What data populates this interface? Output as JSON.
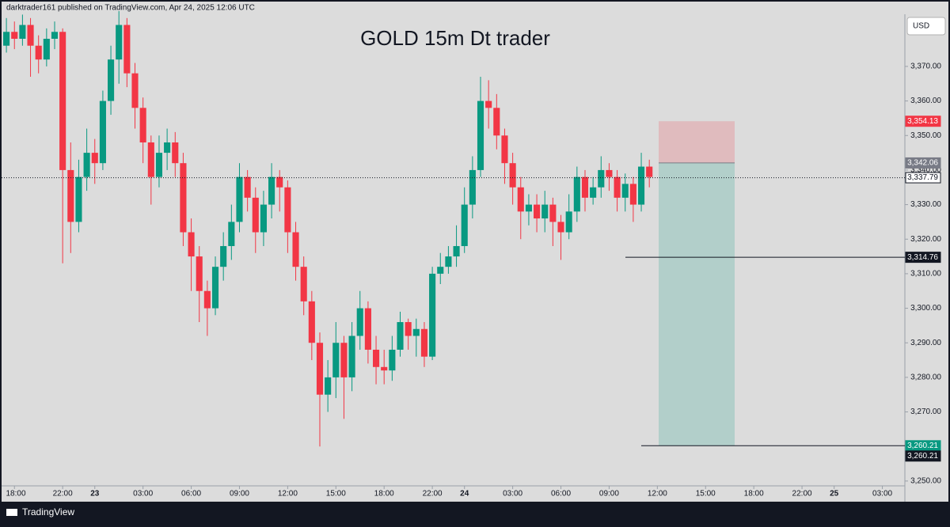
{
  "header": {
    "text": "darktrader161 published on TradingView.com, Apr 24, 2025 12:06 UTC"
  },
  "footer": {
    "brand": "TradingView"
  },
  "chart_data": {
    "type": "candlestick",
    "title": "GOLD 15m  Dt trader",
    "currency": "USD",
    "up_color": "#089981",
    "down_color": "#f23645",
    "x": [
      -5.5,
      -5,
      -4.5,
      -4,
      -3.5,
      -3,
      -2.5,
      -2,
      -1.5,
      -1,
      -0.5,
      0,
      0.5,
      1,
      1.5,
      2,
      2.5,
      3,
      3.5,
      4,
      4.5,
      5,
      5.5,
      6,
      6.5,
      7,
      7.5,
      8,
      8.5,
      9,
      9.5,
      10,
      10.5,
      11,
      11.5,
      12,
      12.5,
      13,
      13.5,
      14,
      14.5,
      15,
      15.5,
      16,
      16.5,
      17,
      17.5,
      18,
      18.5,
      19,
      19.5,
      20,
      20.5,
      21,
      21.5,
      22,
      22.5,
      23,
      23.5,
      24,
      24.5,
      25,
      25.5,
      26,
      26.5,
      27,
      27.5,
      28,
      28.5,
      29,
      29.5,
      30,
      30.5,
      31,
      31.5,
      32,
      32.5,
      33,
      33.5,
      34,
      34.5
    ],
    "open": [
      3376,
      3380,
      3378,
      3382,
      3376,
      3372,
      3378,
      3380,
      3340,
      3325,
      3338,
      3345,
      3342,
      3360,
      3372,
      3382,
      3368,
      3358,
      3348,
      3338,
      3345,
      3348,
      3342,
      3322,
      3315,
      3305,
      3300,
      3312,
      3318,
      3325,
      3338,
      3332,
      3322,
      3330,
      3338,
      3335,
      3322,
      3312,
      3302,
      3290,
      3275,
      3280,
      3290,
      3280,
      3292,
      3300,
      3288,
      3283,
      3282,
      3288,
      3296,
      3292,
      3294,
      3286,
      3310,
      3312,
      3315,
      3318,
      3330,
      3340,
      3360,
      3358,
      3350,
      3342,
      3335,
      3328,
      3330,
      3326,
      3330,
      3325,
      3322,
      3328,
      3338,
      3332,
      3335,
      3340,
      3338,
      3332,
      3336,
      3330,
      3341
    ],
    "high": [
      3384,
      3383,
      3385,
      3384,
      3379,
      3381,
      3383,
      3381,
      3348,
      3343,
      3352,
      3349,
      3363,
      3376,
      3386,
      3384,
      3371,
      3361,
      3350,
      3350,
      3352,
      3351,
      3345,
      3326,
      3318,
      3308,
      3315,
      3322,
      3330,
      3342,
      3340,
      3335,
      3334,
      3342,
      3340,
      3337,
      3325,
      3315,
      3305,
      3293,
      3285,
      3296,
      3292,
      3296,
      3305,
      3302,
      3292,
      3288,
      3292,
      3299,
      3297,
      3297,
      3296,
      3312,
      3316,
      3318,
      3324,
      3335,
      3344,
      3367,
      3366,
      3362,
      3352,
      3345,
      3338,
      3333,
      3333,
      3334,
      3332,
      3327,
      3333,
      3341,
      3340,
      3338,
      3344,
      3342,
      3340,
      3339,
      3338,
      3345,
      3343
    ],
    "low": [
      3374,
      3375,
      3376,
      3367,
      3368,
      3370,
      3375,
      3313,
      3316,
      3322,
      3334,
      3336,
      3340,
      3356,
      3365,
      3364,
      3352,
      3342,
      3330,
      3335,
      3340,
      3338,
      3318,
      3305,
      3296,
      3292,
      3298,
      3308,
      3314,
      3322,
      3328,
      3316,
      3318,
      3326,
      3328,
      3316,
      3308,
      3298,
      3285,
      3260,
      3270,
      3274,
      3268,
      3276,
      3288,
      3284,
      3278,
      3278,
      3279,
      3286,
      3288,
      3286,
      3283,
      3285,
      3307,
      3310,
      3312,
      3316,
      3326,
      3338,
      3352,
      3346,
      3336,
      3330,
      3320,
      3324,
      3322,
      3322,
      3318,
      3314,
      3320,
      3325,
      3328,
      3330,
      3332,
      3334,
      3328,
      3328,
      3325,
      3328,
      3335
    ],
    "close": [
      3380,
      3378,
      3382,
      3376,
      3372,
      3378,
      3380,
      3340,
      3325,
      3338,
      3345,
      3342,
      3360,
      3372,
      3382,
      3368,
      3358,
      3348,
      3338,
      3345,
      3348,
      3342,
      3322,
      3315,
      3305,
      3300,
      3312,
      3318,
      3325,
      3338,
      3332,
      3322,
      3330,
      3338,
      3335,
      3322,
      3312,
      3302,
      3290,
      3275,
      3280,
      3290,
      3280,
      3292,
      3300,
      3288,
      3283,
      3282,
      3288,
      3296,
      3292,
      3294,
      3286,
      3310,
      3312,
      3315,
      3318,
      3330,
      3340,
      3360,
      3358,
      3350,
      3342,
      3335,
      3328,
      3330,
      3326,
      3330,
      3325,
      3322,
      3328,
      3338,
      3332,
      3335,
      3340,
      3338,
      3332,
      3336,
      3330,
      3341,
      3338
    ],
    "xlim": [
      -5.8,
      50.4
    ],
    "xticks": [
      {
        "value": -5,
        "label": "18:00"
      },
      {
        "value": -2,
        "label": "22:00"
      },
      {
        "value": 0,
        "label": "23"
      },
      {
        "value": 3,
        "label": "03:00"
      },
      {
        "value": 6,
        "label": "06:00"
      },
      {
        "value": 9,
        "label": "09:00"
      },
      {
        "value": 12,
        "label": "12:00"
      },
      {
        "value": 15,
        "label": "15:00"
      },
      {
        "value": 18,
        "label": "18:00"
      },
      {
        "value": 21,
        "label": "22:00"
      },
      {
        "value": 23,
        "label": "24"
      },
      {
        "value": 26,
        "label": "03:00"
      },
      {
        "value": 29,
        "label": "06:00"
      },
      {
        "value": 32,
        "label": "09:00"
      },
      {
        "value": 35,
        "label": "12:00"
      },
      {
        "value": 38,
        "label": "15:00"
      },
      {
        "value": 41,
        "label": "18:00"
      },
      {
        "value": 44,
        "label": "22:00"
      },
      {
        "value": 46,
        "label": "25"
      },
      {
        "value": 49,
        "label": "03:00"
      }
    ],
    "ylim": [
      3248.6,
      3385.1
    ],
    "yticks": [
      {
        "value": 3250,
        "label": "3,250.00"
      },
      {
        "value": 3260,
        "label": "3,260.00"
      },
      {
        "value": 3270,
        "label": "3,270.00"
      },
      {
        "value": 3280,
        "label": "3,280.00"
      },
      {
        "value": 3290,
        "label": "3,290.00"
      },
      {
        "value": 3300,
        "label": "3,300.00"
      },
      {
        "value": 3310,
        "label": "3,310.00"
      },
      {
        "value": 3320,
        "label": "3,320.00"
      },
      {
        "value": 3330,
        "label": "3,330.00"
      },
      {
        "value": 3340,
        "label": "3,340.00"
      },
      {
        "value": 3350,
        "label": "3,350.00"
      },
      {
        "value": 3360,
        "label": "3,360.00"
      },
      {
        "value": 3370,
        "label": "3,370.00"
      }
    ],
    "position": {
      "stop": {
        "value": 3354.13,
        "label": "3,354.13",
        "color": "#f23645"
      },
      "entry": {
        "value": 3342.06,
        "label": "3,342.06",
        "color": "#787b86"
      },
      "target": {
        "value": 3260.21,
        "label": "3,260.21",
        "color": "#089981"
      }
    },
    "price_labels": [
      {
        "value": 3337.79,
        "label": "3,337.79",
        "color": "#ffffff"
      },
      {
        "value": 3314.76,
        "label": "3,314.76",
        "color": "#131722"
      },
      {
        "value": 3260.21,
        "label": "3,260.21",
        "color": "#131722"
      }
    ]
  }
}
